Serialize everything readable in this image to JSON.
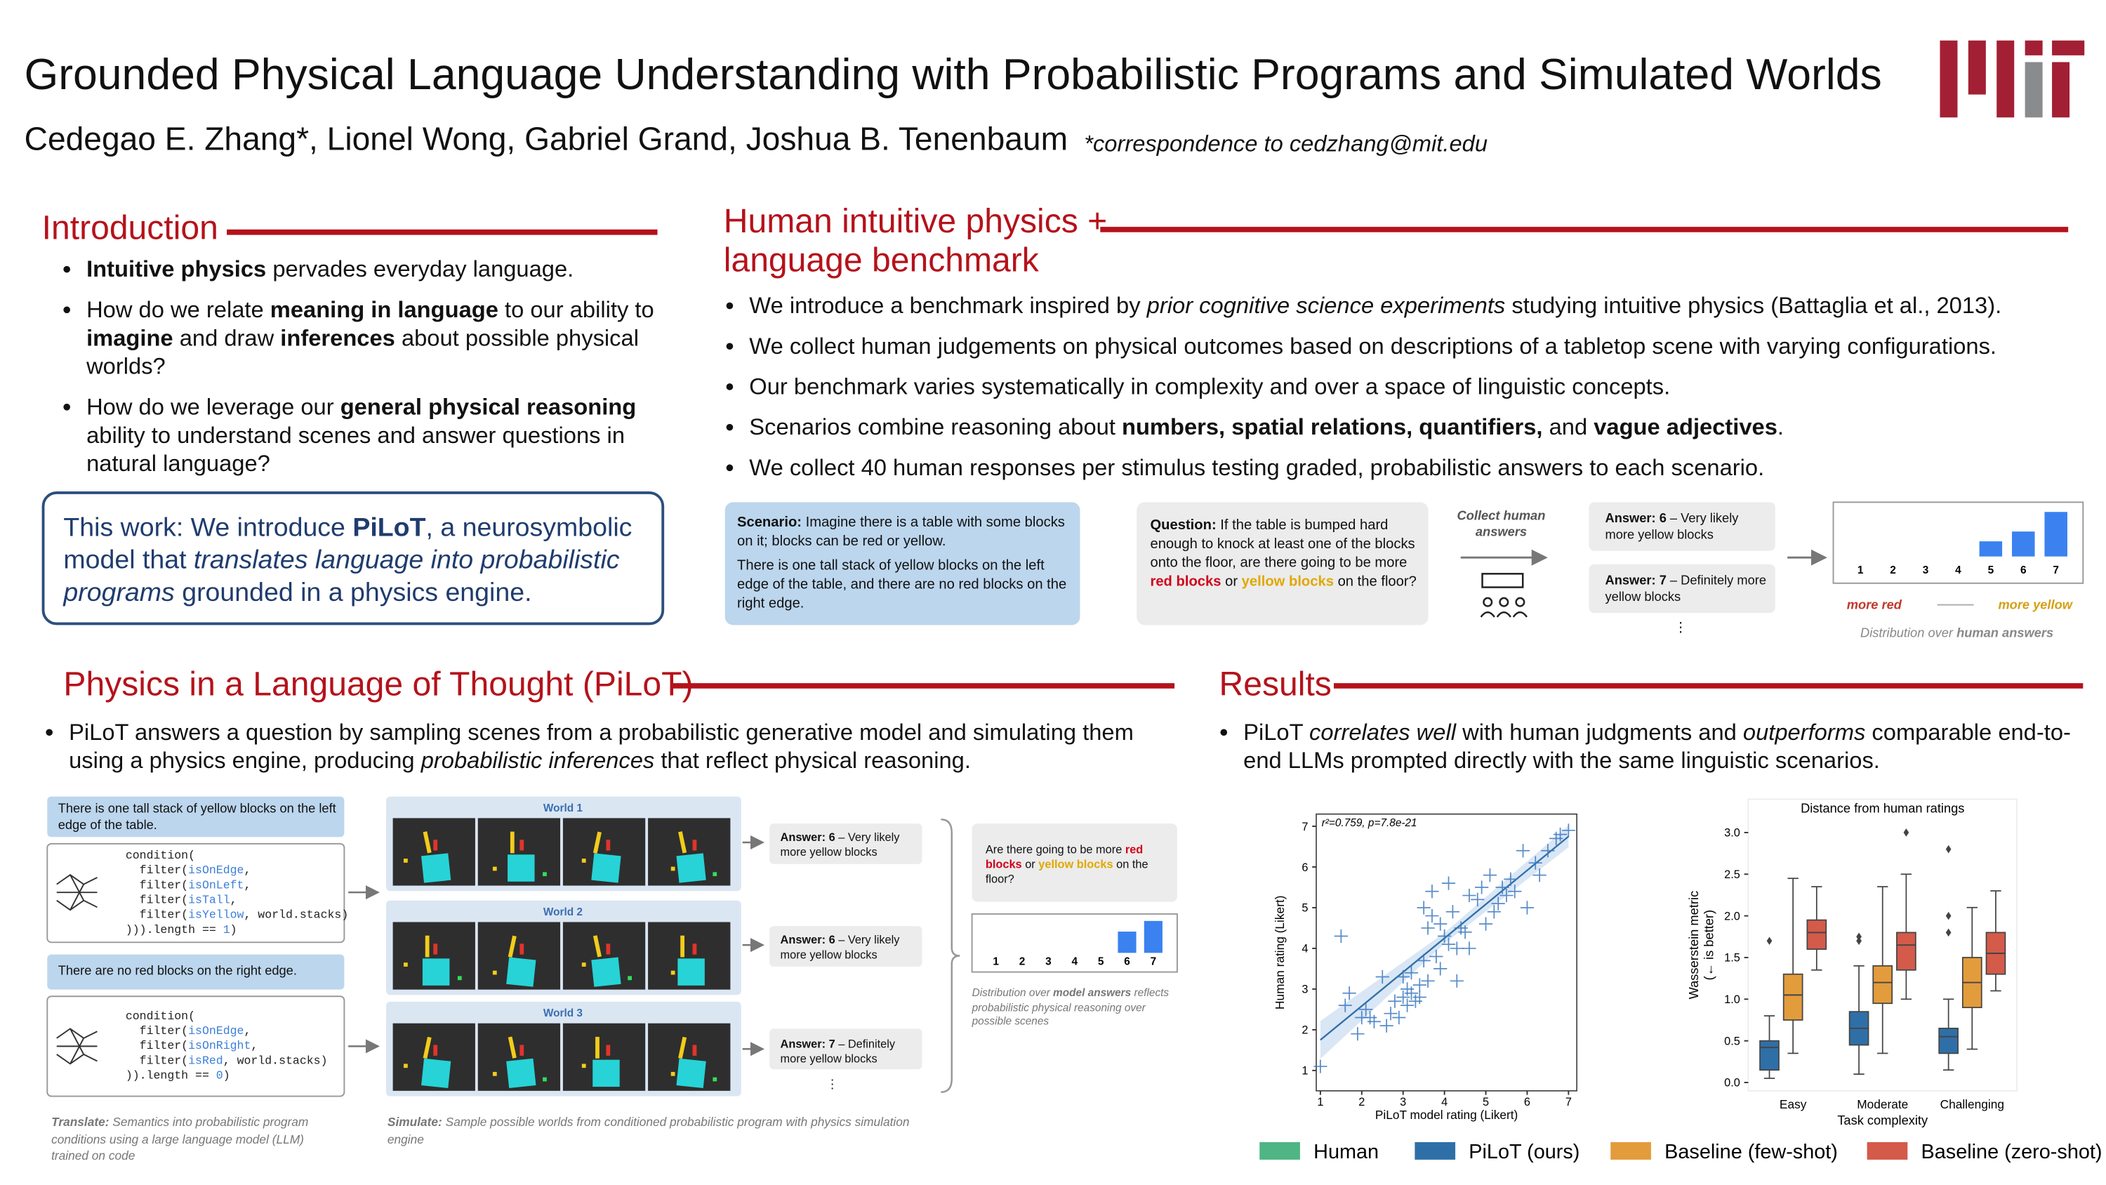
{
  "header": {
    "title": "Grounded Physical Language Understanding with Probabilistic Programs and Simulated Worlds",
    "authors": "Cedegao E. Zhang*, Lionel Wong, Gabriel Grand, Joshua B. Tenenbaum",
    "correspondence": "*correspondence to cedzhang@mit.edu"
  },
  "intro": {
    "heading": "Introduction",
    "bullets": [
      [
        {
          "bold": "Intuitive physics"
        },
        " pervades everyday language."
      ],
      [
        "How do we relate ",
        {
          "bold": "meaning in language"
        },
        " to our ability to ",
        {
          "bold": "imagine"
        },
        " and draw ",
        {
          "bold": "inferences"
        },
        " about possible physical worlds?"
      ],
      [
        "How do we leverage our ",
        {
          "bold": "general physical reasoning"
        },
        " ability to understand scenes and answer questions in natural language?"
      ]
    ],
    "box": [
      "This work:  We introduce ",
      {
        "bold": "PiLoT"
      },
      ", a neurosymbolic model that ",
      {
        "italic": "translates language into probabilistic programs"
      },
      " grounded in a physics engine."
    ]
  },
  "benchmark": {
    "heading": "Human intuitive physics + language benchmark",
    "bullets": [
      [
        "We introduce a benchmark inspired by ",
        {
          "italic": "prior cognitive science experiments"
        },
        " studying intuitive physics (Battaglia et al., 2013)."
      ],
      [
        "We collect human judgements on physical outcomes based on descriptions of a tabletop scene with varying configurations."
      ],
      [
        "Our benchmark varies systematically in complexity and over a space of linguistic concepts."
      ],
      [
        "Scenarios combine reasoning about ",
        {
          "bold": "numbers, spatial relations, quantifiers,"
        },
        " and ",
        {
          "bold": "vague adjectives"
        },
        "."
      ],
      [
        "We collect 40 human responses per stimulus testing graded, probabilistic answers to each scenario."
      ]
    ],
    "scenario": [
      [
        {
          "bold": "Scenario:"
        },
        " Imagine there is a table with some blocks on it; blocks can be red or yellow."
      ],
      [
        "There is one tall stack of yellow blocks on the left edge of the table, and there are no red blocks on the right edge."
      ]
    ],
    "question": [
      {
        "bold": "Question:"
      },
      " If the table is bumped hard enough to knock at least one of the blocks onto the floor, are there going to be more ",
      {
        "bold": "red blocks",
        "color": "#d0021b"
      },
      " or ",
      {
        "bold": "yellow blocks",
        "color": "#e0a800"
      },
      " on the floor?"
    ],
    "collect": "Collect human answers",
    "answers": [
      [
        {
          "bold": "Answer: 6"
        },
        " – Very likely more yellow blocks"
      ],
      [
        {
          "bold": "Answer: 7"
        },
        " – Definitely more yellow blocks"
      ]
    ],
    "more": "⋮"
  },
  "pilot": {
    "heading": "Physics in a Language of Thought (PiLoT)",
    "bullets": [
      [
        "PiLoT answers a question by sampling scenes from a probabilistic generative model and simulating them using a physics engine, producing ",
        {
          "italic": "probabilistic inferences"
        },
        " that reflect physical reasoning."
      ]
    ],
    "sentences": [
      "There is one tall stack of yellow blocks on the left edge of the table.",
      "There are no red blocks on the right edge."
    ],
    "code": [
      [
        [
          "condition("
        ],
        [
          "  filter(",
          {
            "fn": "isOnEdge"
          },
          ","
        ],
        [
          "  filter(",
          {
            "fn": "isOnLeft"
          },
          ","
        ],
        [
          "  filter(",
          {
            "fn": "isTall"
          },
          ","
        ],
        [
          "  filter(",
          {
            "fn": "isYellow"
          },
          ", world.stacks)"
        ],
        [
          "))).length == ",
          {
            "fn": "1"
          },
          ")"
        ]
      ],
      [
        [
          "condition("
        ],
        [
          "  filter(",
          {
            "fn": "isOnEdge"
          },
          ","
        ],
        [
          "  filter(",
          {
            "fn": "isOnRight"
          },
          ","
        ],
        [
          "  filter(",
          {
            "fn": "isRed"
          },
          ", world.stacks)"
        ],
        [
          ")).length == ",
          {
            "fn": "0"
          },
          ")"
        ]
      ]
    ],
    "code_fn_color": "#3d7fd9",
    "worlds": [
      "World 1",
      "World 2",
      "World 3"
    ],
    "answers": [
      [
        {
          "bold": "Answer: 6"
        },
        " – Very likely more yellow blocks"
      ],
      [
        {
          "bold": "Answer: 6"
        },
        " – Very likely more yellow blocks"
      ],
      [
        {
          "bold": "Answer: 7"
        },
        " – Definitely more yellow blocks"
      ]
    ],
    "more": "⋮",
    "question": [
      "Are there going to be more ",
      {
        "bold": "red blocks",
        "color": "#d0021b"
      },
      " or ",
      {
        "bold": "yellow blocks",
        "color": "#e0a800"
      },
      " on the floor?"
    ],
    "translate": [
      {
        "bold": "Translate:"
      },
      " Semantics into probabilistic program conditions using a large language model (LLM) trained on code"
    ],
    "simulate": [
      {
        "bold": "Simulate:"
      },
      " Sample possible worlds from conditioned probabilistic program with physics simulation engine"
    ]
  },
  "results": {
    "heading": "Results",
    "bullets": [
      [
        "PiLoT ",
        {
          "italic": "correlates well"
        },
        " with human judgments and ",
        {
          "italic": "outperforms"
        },
        " comparable end-to-end LLMs prompted directly with the same linguistic scenarios."
      ]
    ]
  },
  "chart_data": [
    {
      "type": "bar",
      "categories": [
        "1",
        "2",
        "3",
        "4",
        "5",
        "6",
        "7"
      ],
      "values": [
        0,
        0,
        0,
        0,
        0.17,
        0.28,
        0.5
      ],
      "color": "#3b82f0",
      "annotations": [
        "more red",
        "more yellow"
      ],
      "annotation_colors": [
        "#c0392b",
        "#d4a017"
      ],
      "caption": [
        "Distribution over ",
        {
          "bold": "human answers"
        }
      ]
    },
    {
      "type": "bar",
      "categories": [
        "1",
        "2",
        "3",
        "4",
        "5",
        "6",
        "7"
      ],
      "values": [
        0,
        0,
        0,
        0,
        0,
        0.4,
        0.6
      ],
      "color": "#3b82f0",
      "caption": [
        "Distribution over ",
        {
          "bold": "model answers"
        },
        " reflects probabilistic physical reasoning over possible scenes"
      ]
    },
    {
      "type": "scatter",
      "annotation": "r²=0.759, p=7.8e-21",
      "xlabel": "PiLoT model rating (Likert)",
      "ylabel": "Human rating (Likert)",
      "color": "#3a78c0",
      "x": [
        1,
        1.5,
        1.6,
        1.7,
        1.9,
        2.0,
        2.1,
        2.2,
        2.3,
        2.5,
        2.6,
        2.7,
        2.8,
        2.9,
        3.0,
        3.0,
        3.1,
        3.1,
        3.2,
        3.2,
        3.3,
        3.4,
        3.4,
        3.5,
        3.5,
        3.6,
        3.6,
        3.7,
        3.7,
        3.8,
        3.9,
        3.9,
        4.0,
        4.1,
        4.1,
        4.2,
        4.3,
        4.3,
        4.4,
        4.5,
        4.6,
        4.6,
        4.8,
        4.9,
        5.0,
        5.1,
        5.2,
        5.3,
        5.4,
        5.5,
        5.6,
        5.7,
        5.9,
        6.0,
        6.2,
        6.3,
        6.5,
        6.7,
        6.8,
        7.0
      ],
      "y": [
        1.1,
        4.3,
        2.6,
        2.9,
        1.9,
        2.3,
        2.5,
        2.3,
        2.2,
        3.3,
        2.1,
        2.4,
        2.7,
        2.3,
        3.3,
        2.8,
        3.0,
        2.6,
        3.4,
        2.9,
        2.7,
        3.1,
        2.8,
        3.7,
        5.0,
        4.5,
        3.2,
        4.8,
        5.4,
        3.8,
        4.6,
        3.5,
        4.3,
        5.6,
        4.1,
        4.9,
        4.0,
        3.2,
        4.5,
        4.4,
        4.0,
        5.3,
        5.2,
        5.5,
        4.6,
        5.8,
        4.9,
        5.1,
        5.5,
        5.3,
        5.7,
        5.4,
        6.4,
        5.0,
        6.1,
        5.8,
        6.4,
        6.7,
        6.8,
        6.9
      ],
      "xlim": [
        0.9,
        7.2
      ],
      "ylim": [
        0.5,
        7.3
      ],
      "xticks": [
        1,
        2,
        3,
        4,
        5,
        6,
        7
      ],
      "yticks": [
        1,
        2,
        3,
        4,
        5,
        6,
        7
      ],
      "trend_line": {
        "x": [
          1,
          7
        ],
        "y": [
          1.75,
          6.75
        ]
      }
    },
    {
      "type": "box",
      "title": "Distance from human ratings",
      "xlabel": "Task complexity",
      "ylabel": [
        "Wasserstein metric",
        "(← is better)"
      ],
      "categories": [
        "Easy",
        "Moderate",
        "Challenging"
      ],
      "ylim": [
        -0.1,
        3.4
      ],
      "yticks": [
        {
          "value": 0,
          "label": "0.0"
        },
        0.5,
        {
          "value": 1,
          "label": "1.0"
        },
        1.5,
        {
          "value": 2,
          "label": "2.0"
        },
        2.5,
        {
          "value": 3,
          "label": "3.0"
        }
      ],
      "series": [
        {
          "name": "Human",
          "color": "#4fb584",
          "values": [
            null,
            null,
            null
          ]
        },
        {
          "name": "PiLoT (ours)",
          "color": "#2f6fa7",
          "values": [
            {
              "min": 0.05,
              "q1": 0.15,
              "median": 0.42,
              "q3": 0.5,
              "max": 0.8,
              "outliers": [
                1.7
              ]
            },
            {
              "min": 0.1,
              "q1": 0.45,
              "median": 0.65,
              "q3": 0.85,
              "max": 1.4,
              "outliers": [
                1.7,
                1.75
              ]
            },
            {
              "min": 0.15,
              "q1": 0.35,
              "median": 0.55,
              "q3": 0.65,
              "max": 1.0,
              "outliers": [
                1.8,
                2.0,
                2.8
              ]
            }
          ]
        },
        {
          "name": "Baseline (few-shot)",
          "color": "#e39c3c",
          "values": [
            {
              "min": 0.35,
              "q1": 0.75,
              "median": 1.05,
              "q3": 1.3,
              "max": 2.45,
              "outliers": []
            },
            {
              "min": 0.35,
              "q1": 0.95,
              "median": 1.2,
              "q3": 1.4,
              "max": 2.35,
              "outliers": []
            },
            {
              "min": 0.4,
              "q1": 0.9,
              "median": 1.2,
              "q3": 1.5,
              "max": 2.1,
              "outliers": []
            }
          ]
        },
        {
          "name": "Baseline (zero-shot)",
          "color": "#d45a4a",
          "values": [
            {
              "min": 1.35,
              "q1": 1.6,
              "median": 1.8,
              "q3": 1.95,
              "max": 2.35,
              "outliers": []
            },
            {
              "min": 1.0,
              "q1": 1.35,
              "median": 1.65,
              "q3": 1.8,
              "max": 2.5,
              "outliers": [
                3.0
              ]
            },
            {
              "min": 1.1,
              "q1": 1.3,
              "median": 1.55,
              "q3": 1.8,
              "max": 2.3,
              "outliers": []
            }
          ]
        }
      ]
    }
  ]
}
